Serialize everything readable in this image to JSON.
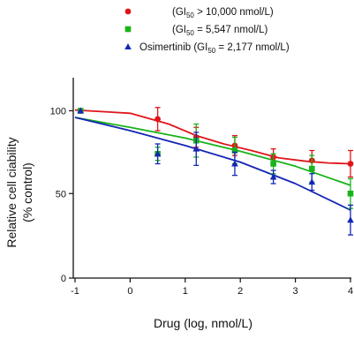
{
  "chart_data": {
    "type": "scatter",
    "xlabel": "Drug (log, nmol/L)",
    "ylabel_line1": "Relative cell ciability",
    "ylabel_line2": "(% control)",
    "xlim": [
      -1,
      4
    ],
    "ylim": [
      0,
      120
    ],
    "xticks": [
      -1,
      0,
      1,
      2,
      3,
      4
    ],
    "yticks": [
      0,
      50,
      100
    ],
    "legend_position": "top",
    "series": [
      {
        "legend_prefix": "(GI",
        "legend_sub": "50",
        "legend_suffix": " > 10,000 nmol/L)",
        "color": "#e0151b",
        "marker": "circle",
        "points": [
          {
            "x": -0.9,
            "y": 100,
            "err": 0
          },
          {
            "x": 0.5,
            "y": 95,
            "err": 7
          },
          {
            "x": 1.2,
            "y": 84,
            "err": 6
          },
          {
            "x": 1.9,
            "y": 79,
            "err": 6
          },
          {
            "x": 2.6,
            "y": 72,
            "err": 5
          },
          {
            "x": 3.3,
            "y": 70,
            "err": 6
          },
          {
            "x": 4.0,
            "y": 68,
            "err": 8
          }
        ],
        "fit": [
          [
            -1,
            100.5
          ],
          [
            0,
            98.5
          ],
          [
            0.7,
            92
          ],
          [
            1.2,
            85
          ],
          [
            1.7,
            80
          ],
          [
            2.2,
            76
          ],
          [
            2.7,
            71.5
          ],
          [
            3.2,
            69.5
          ],
          [
            3.6,
            68.5
          ],
          [
            4,
            68
          ]
        ]
      },
      {
        "legend_prefix": "(GI",
        "legend_sub": "50",
        "legend_suffix": " = 5,547 nmol/L)",
        "color": "#19b31c",
        "marker": "square",
        "points": [
          {
            "x": -0.9,
            "y": 100,
            "err": 0
          },
          {
            "x": 0.5,
            "y": 74,
            "err": 4
          },
          {
            "x": 1.2,
            "y": 82,
            "err": 10
          },
          {
            "x": 1.9,
            "y": 76,
            "err": 8
          },
          {
            "x": 2.6,
            "y": 68,
            "err": 6
          },
          {
            "x": 3.3,
            "y": 65,
            "err": 8
          },
          {
            "x": 4.0,
            "y": 50,
            "err": 9
          }
        ],
        "fit": [
          [
            -1,
            96
          ],
          [
            0,
            90
          ],
          [
            1,
            83.5
          ],
          [
            2,
            75.5
          ],
          [
            3,
            66.5
          ],
          [
            4,
            55
          ]
        ]
      },
      {
        "legend_prefix": "Osimertinib (GI",
        "legend_sub": "50",
        "legend_suffix": " = 2,177 nmol/L)",
        "color": "#1426b5",
        "marker": "triangle",
        "points": [
          {
            "x": -0.9,
            "y": 100,
            "err": 0
          },
          {
            "x": 0.5,
            "y": 74,
            "err": 6
          },
          {
            "x": 1.2,
            "y": 77,
            "err": 10
          },
          {
            "x": 1.9,
            "y": 68,
            "err": 7
          },
          {
            "x": 2.6,
            "y": 60,
            "err": 4
          },
          {
            "x": 3.3,
            "y": 57,
            "err": 5
          },
          {
            "x": 4.0,
            "y": 34,
            "err": 9
          }
        ],
        "fit": [
          [
            -1,
            96
          ],
          [
            0,
            88
          ],
          [
            1,
            79
          ],
          [
            2,
            69
          ],
          [
            3,
            56
          ],
          [
            4,
            40
          ]
        ]
      }
    ]
  }
}
